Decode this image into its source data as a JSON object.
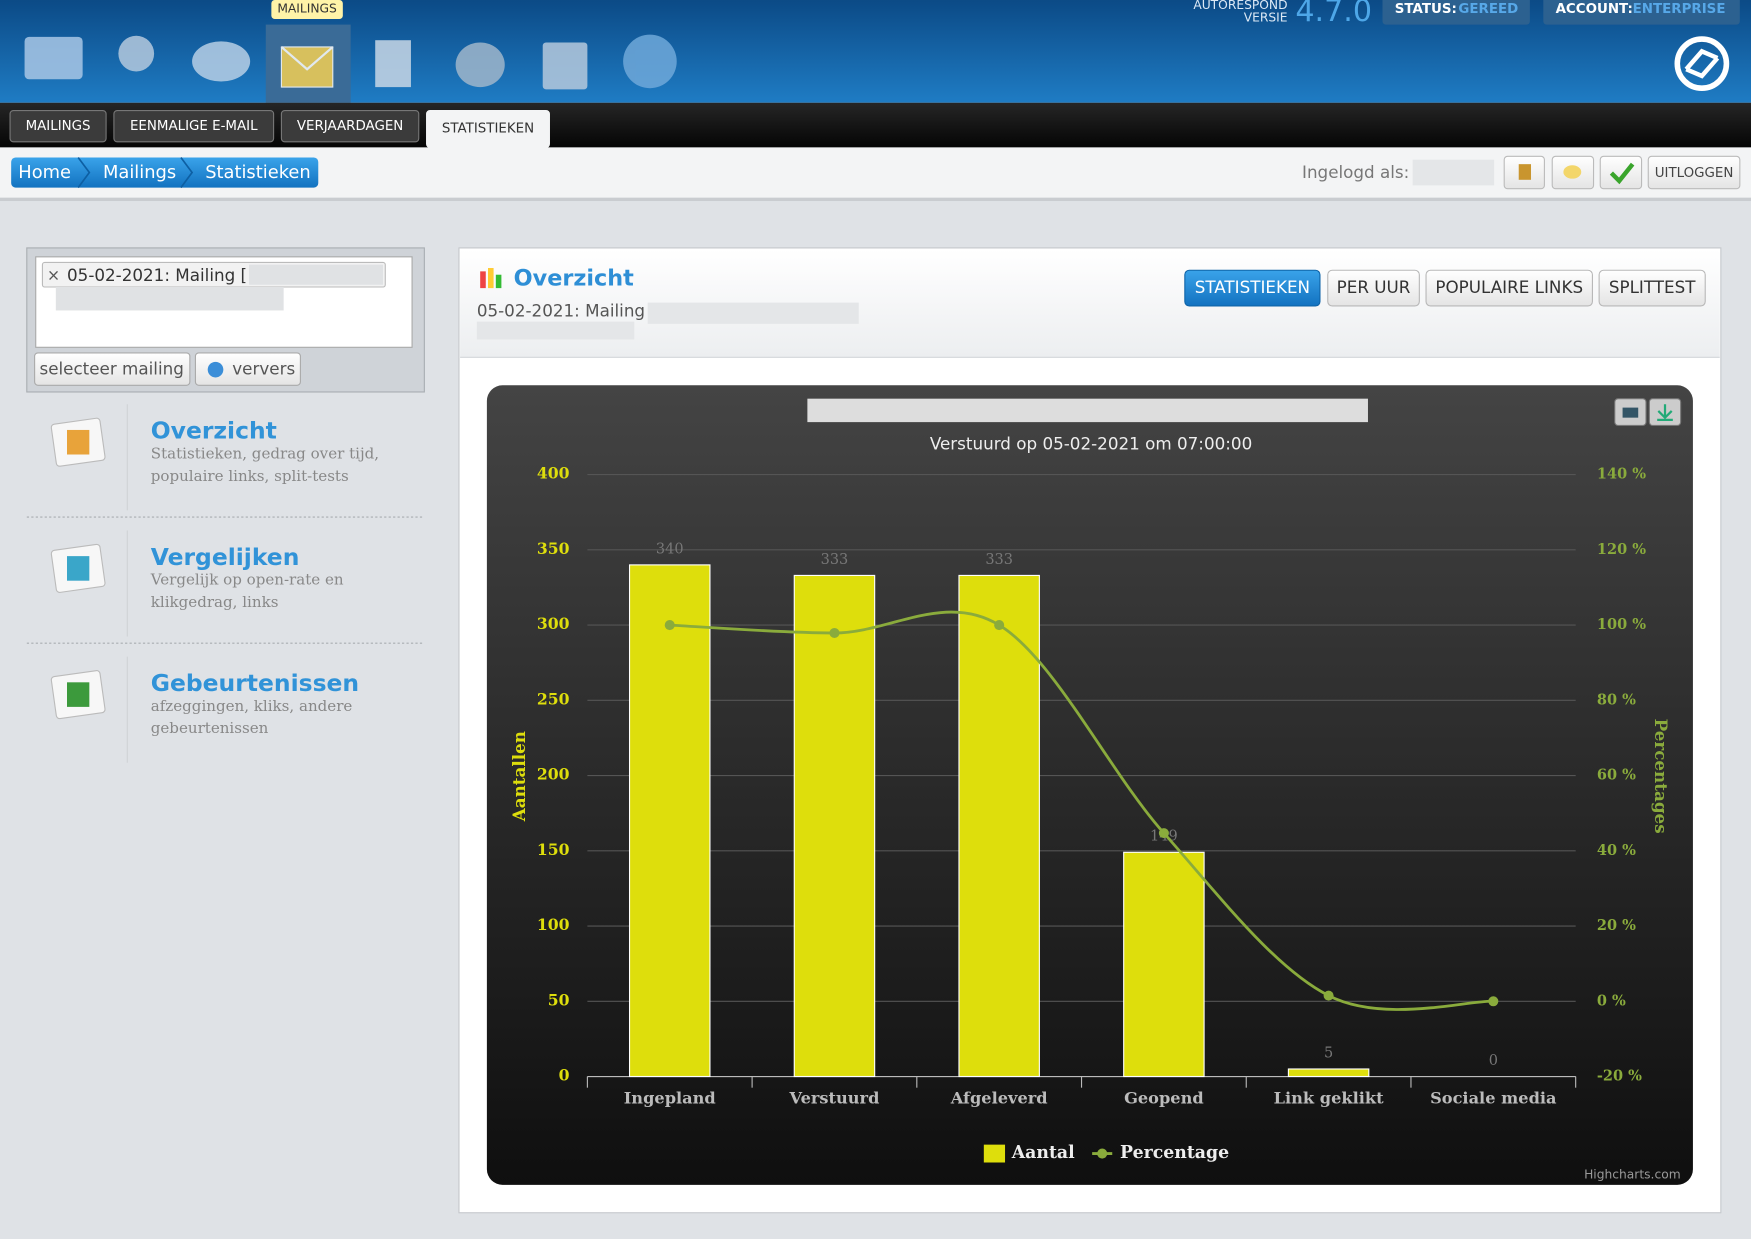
{
  "header": {
    "tooltip": "MAILINGS",
    "version_caption_1": "AUTORESPOND",
    "version_caption_2": "VERSIE",
    "version": "4.7.0",
    "status_label": "STATUS:",
    "status": "GEREED",
    "account_label": "ACCOUNT:",
    "account": "ENTERPRISE"
  },
  "tabs": [
    "MAILINGS",
    "EENMALIGE E-MAIL",
    "VERJAARDAGEN",
    "STATISTIEKEN"
  ],
  "breadcrumbs": [
    "Home",
    "Mailings",
    "Statistieken"
  ],
  "login_label": "Ingelogd als:",
  "logout": "UITLOGGEN",
  "selector": {
    "remove_icon": "×",
    "tag": "05-02-2021: Mailing [",
    "select_button": "selecteer mailing",
    "refresh_button": "ververs"
  },
  "sidebar": [
    {
      "title": "Overzicht",
      "description": [
        "Statistieken, gedrag over tijd,",
        "populaire links, split-tests"
      ]
    },
    {
      "title": "Vergelijken",
      "description": [
        "Vergelijk op open-rate en",
        "klikgedrag, links"
      ]
    },
    {
      "title": "Gebeurtenissen",
      "description": [
        "afzeggingen, kliks, andere",
        "gebeurtenissen"
      ]
    }
  ],
  "panel": {
    "title": "Overzicht",
    "subtitle": "05-02-2021: Mailing",
    "buttons": [
      "STATISTIEKEN",
      "PER UUR",
      "POPULAIRE LINKS",
      "SPLITTEST"
    ]
  },
  "chart_data": {
    "type": "bar",
    "subtitle": "Verstuurd op 05-02-2021 om 07:00:00",
    "ylabel": "Aantallen",
    "y2label": "Percentages",
    "credits": "Highcharts.com",
    "categories": [
      "Ingepland",
      "Verstuurd",
      "Afgeleverd",
      "Geopend",
      "Link geklikt",
      "Sociale media"
    ],
    "series": [
      {
        "name": "Aantal",
        "type": "bar",
        "color": "#dede0c",
        "values": [
          340,
          333,
          333,
          149,
          5,
          0
        ]
      },
      {
        "name": "Percentage",
        "type": "line",
        "axis": "y2",
        "color": "#8aab3c",
        "values": [
          100,
          97.9,
          100,
          44.7,
          1.5,
          0
        ]
      }
    ],
    "ylim": [
      0,
      400
    ],
    "yticks": [
      0,
      50,
      100,
      150,
      200,
      250,
      300,
      350,
      400
    ],
    "y2lim": [
      -20,
      140
    ],
    "y2ticks": [
      {
        "value": -20,
        "label": "-20 %"
      },
      {
        "value": 0,
        "label": "0 %"
      },
      {
        "value": 20,
        "label": "20 %"
      },
      {
        "value": 40,
        "label": "40 %"
      },
      {
        "value": 60,
        "label": "60 %"
      },
      {
        "value": 80,
        "label": "80 %"
      },
      {
        "value": 100,
        "label": "100 %"
      },
      {
        "value": 120,
        "label": "120 %"
      },
      {
        "value": 140,
        "label": "140 %"
      }
    ],
    "grid": true,
    "legend": "bottom"
  }
}
